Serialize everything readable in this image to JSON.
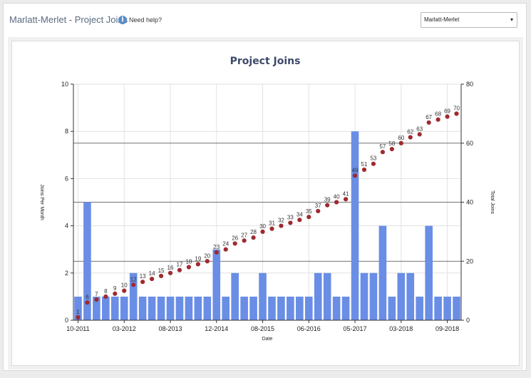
{
  "header": {
    "title": "Marlatt-Merlet - Project Joins",
    "help_icon": "info-icon",
    "help_label": "Need help?",
    "select_value": "Marlatt-Merlet",
    "select_caret": "▾"
  },
  "chart_data": {
    "type": "bar",
    "title": "Project Joins",
    "xlabel": "Date",
    "ylabel": "Joins Per Month",
    "y2label": "Total Joins",
    "ylim": [
      0,
      10
    ],
    "yticks": [
      0,
      2,
      4,
      6,
      8,
      10
    ],
    "y2lim": [
      0,
      80
    ],
    "y2ticks": [
      0,
      20,
      40,
      60,
      80
    ],
    "x_tick_labels": [
      {
        "index": 0,
        "label": "10-2011"
      },
      {
        "index": 5,
        "label": "03-2012"
      },
      {
        "index": 10,
        "label": "08-2013"
      },
      {
        "index": 15,
        "label": "12-2014"
      },
      {
        "index": 20,
        "label": "08-2015"
      },
      {
        "index": 25,
        "label": "06-2016"
      },
      {
        "index": 30,
        "label": "05-2017"
      },
      {
        "index": 35,
        "label": "03-2018"
      },
      {
        "index": 40,
        "label": "09-2018"
      }
    ],
    "bar_color": "#6a8ee6",
    "cumulative_color": "#9e2a2f",
    "series": [
      {
        "name": "Joins Per Month",
        "kind": "bar",
        "axis": "left",
        "values": [
          1,
          5,
          1,
          1,
          1,
          1,
          2,
          1,
          1,
          1,
          1,
          1,
          1,
          1,
          1,
          3,
          1,
          2,
          1,
          1,
          2,
          1,
          1,
          1,
          1,
          1,
          2,
          2,
          1,
          1,
          8,
          2,
          2,
          4,
          1,
          2,
          2,
          1,
          4,
          1,
          1,
          1
        ]
      },
      {
        "name": "Total Joins",
        "kind": "scatter",
        "axis": "right",
        "values": [
          1,
          6,
          7,
          8,
          9,
          10,
          12,
          13,
          14,
          15,
          16,
          17,
          18,
          19,
          20,
          23,
          24,
          26,
          27,
          28,
          30,
          31,
          32,
          33,
          34,
          35,
          37,
          39,
          40,
          41,
          49,
          51,
          53,
          57,
          58,
          60,
          62,
          63,
          67,
          68,
          69,
          70
        ]
      }
    ],
    "reference_lines_right_axis": [
      20,
      40,
      60
    ]
  }
}
